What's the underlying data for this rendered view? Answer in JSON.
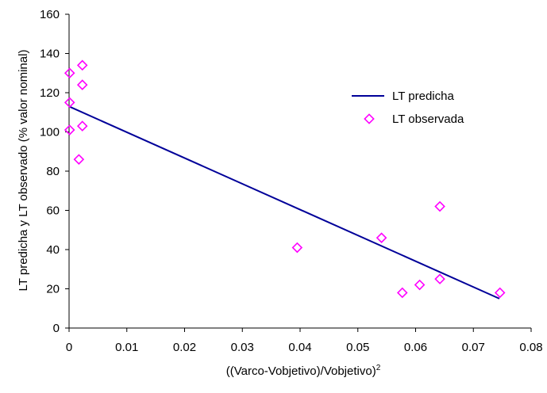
{
  "chart_data": {
    "type": "scatter",
    "title": "",
    "xlabel": "((Varco-Vobjetivo)/Vobjetivo)",
    "xlabel_superscript": "2",
    "ylabel": "LT predicha y LT observado (% valor nominal)",
    "xlim": [
      0,
      0.08
    ],
    "ylim": [
      0,
      160
    ],
    "x_ticks": [
      0,
      0.01,
      0.02,
      0.03,
      0.04,
      0.05,
      0.06,
      0.07,
      0.08
    ],
    "x_tick_labels": [
      "0",
      "0.01",
      "0.02",
      "0.03",
      "0.04",
      "0.05",
      "0.06",
      "0.07",
      "0.08"
    ],
    "y_ticks": [
      0,
      20,
      40,
      60,
      80,
      100,
      120,
      140,
      160
    ],
    "y_tick_labels": [
      "0",
      "20",
      "40",
      "60",
      "80",
      "100",
      "120",
      "140",
      "160"
    ],
    "grid": false,
    "legend_position": "top-right",
    "series": [
      {
        "name": "LT predicha",
        "kind": "line",
        "color": "#000099",
        "points": [
          [
            0,
            113
          ],
          [
            0.0745,
            15
          ]
        ]
      },
      {
        "name": "LT observada",
        "kind": "scatter",
        "marker": "diamond",
        "color": "#ff00ff",
        "points": [
          [
            0.0001,
            130
          ],
          [
            0.0001,
            115
          ],
          [
            0.0001,
            101
          ],
          [
            0.0017,
            86
          ],
          [
            0.0023,
            134
          ],
          [
            0.0023,
            124
          ],
          [
            0.0023,
            103
          ],
          [
            0.0395,
            41
          ],
          [
            0.0541,
            46
          ],
          [
            0.0577,
            18
          ],
          [
            0.0607,
            22
          ],
          [
            0.0642,
            62
          ],
          [
            0.0642,
            25
          ],
          [
            0.0746,
            18
          ]
        ]
      }
    ]
  }
}
